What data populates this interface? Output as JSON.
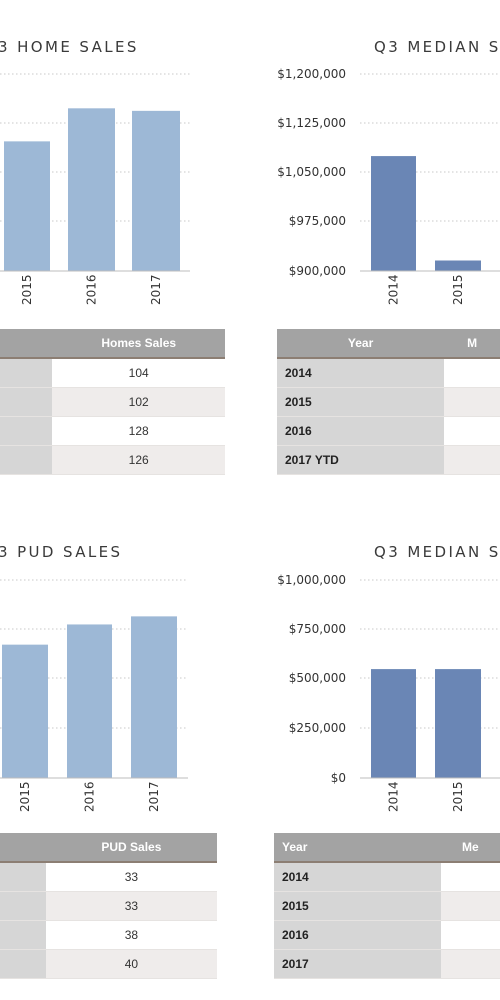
{
  "chart_data": [
    {
      "type": "bar",
      "title": "3 HOME SALES",
      "categories": [
        "2015",
        "2016",
        "2017"
      ],
      "values": [
        102,
        128,
        126
      ],
      "ylim": [
        0,
        155
      ],
      "colors": {
        "bar": "#9db8d6"
      }
    },
    {
      "type": "bar",
      "title": "Q3 MEDIAN S",
      "categories": [
        "2014",
        "2015"
      ],
      "values": [
        1075000,
        916000
      ],
      "ytick_labels": [
        "$1,200,000",
        "$1,125,000",
        "$1,050,000",
        "$975,000",
        "$900,000"
      ],
      "ylim": [
        900000,
        1200000
      ],
      "colors": {
        "bar": "#6a86b5"
      }
    },
    {
      "type": "bar",
      "title": "3 PUD SALES",
      "categories": [
        "2015",
        "2016",
        "2017"
      ],
      "values": [
        33,
        38,
        40
      ],
      "ylim": [
        0,
        49
      ],
      "colors": {
        "bar": "#9db8d6"
      }
    },
    {
      "type": "bar",
      "title": "Q3 MEDIAN S",
      "categories": [
        "2014",
        "2015"
      ],
      "values": [
        550000,
        550000
      ],
      "ytick_labels": [
        "$1,000,000",
        "$750,000",
        "$500,000",
        "$250,000",
        "$0"
      ],
      "ylim": [
        0,
        1000000
      ],
      "colors": {
        "bar": "#6a86b5"
      }
    }
  ],
  "tables": {
    "home_sales": {
      "header": [
        "",
        "Homes Sales"
      ],
      "rows": [
        [
          "",
          "104"
        ],
        [
          "",
          "102"
        ],
        [
          "",
          "128"
        ],
        [
          "",
          "126"
        ]
      ]
    },
    "median_top": {
      "header": [
        "Year",
        "M"
      ],
      "rows": [
        [
          "2014",
          ""
        ],
        [
          "2015",
          ""
        ],
        [
          "2016",
          ""
        ],
        [
          "2017 YTD",
          ""
        ]
      ]
    },
    "pud_sales": {
      "header": [
        "",
        "PUD Sales"
      ],
      "rows": [
        [
          "",
          "33"
        ],
        [
          "",
          "33"
        ],
        [
          "",
          "38"
        ],
        [
          "",
          "40"
        ]
      ]
    },
    "median_bottom": {
      "header": [
        "Year",
        "Me"
      ],
      "rows": [
        [
          "2014",
          ""
        ],
        [
          "2015",
          ""
        ],
        [
          "2016",
          ""
        ],
        [
          "2017",
          ""
        ]
      ]
    }
  },
  "colors": {
    "light_bar": "#9db8d6",
    "dark_bar": "#6a86b5",
    "grid": "#c8c8c8",
    "header": "#a3a3a3"
  }
}
